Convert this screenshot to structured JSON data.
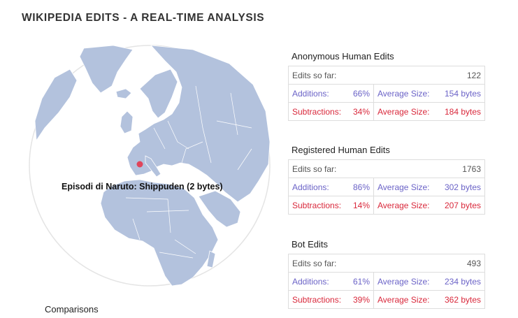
{
  "page": {
    "title": "WIKIPEDIA EDITS - A REAL-TIME ANALYSIS"
  },
  "globe": {
    "tooltip": "Episodi di Naruto: Shippuden (2 bytes)",
    "marker_color": "#e0445a",
    "land_color": "#b3c2dd",
    "ocean_color": "#ffffff"
  },
  "sections": {
    "comparisons_label": "Comparisons"
  },
  "panels": [
    {
      "title": "Anonymous Human Edits",
      "edits_label": "Edits so far:",
      "edits_value": "122",
      "additions_label": "Additions:",
      "additions_pct": "66%",
      "additions_avg_label": "Average Size:",
      "additions_avg": "154 bytes",
      "subtractions_label": "Subtractions:",
      "subtractions_pct": "34%",
      "subtractions_avg_label": "Average Size:",
      "subtractions_avg": "184 bytes"
    },
    {
      "title": "Registered Human Edits",
      "edits_label": "Edits so far:",
      "edits_value": "1763",
      "additions_label": "Additions:",
      "additions_pct": "86%",
      "additions_avg_label": "Average Size:",
      "additions_avg": "302 bytes",
      "subtractions_label": "Subtractions:",
      "subtractions_pct": "14%",
      "subtractions_avg_label": "Average Size:",
      "subtractions_avg": "207 bytes"
    },
    {
      "title": "Bot Edits",
      "edits_label": "Edits so far:",
      "edits_value": "493",
      "additions_label": "Additions:",
      "additions_pct": "61%",
      "additions_avg_label": "Average Size:",
      "additions_avg": "234 bytes",
      "subtractions_label": "Subtractions:",
      "subtractions_pct": "39%",
      "subtractions_avg_label": "Average Size:",
      "subtractions_avg": "362 bytes"
    }
  ],
  "colors": {
    "additions": "#6b63c7",
    "subtractions": "#d9283b",
    "border": "#dddddd"
  }
}
